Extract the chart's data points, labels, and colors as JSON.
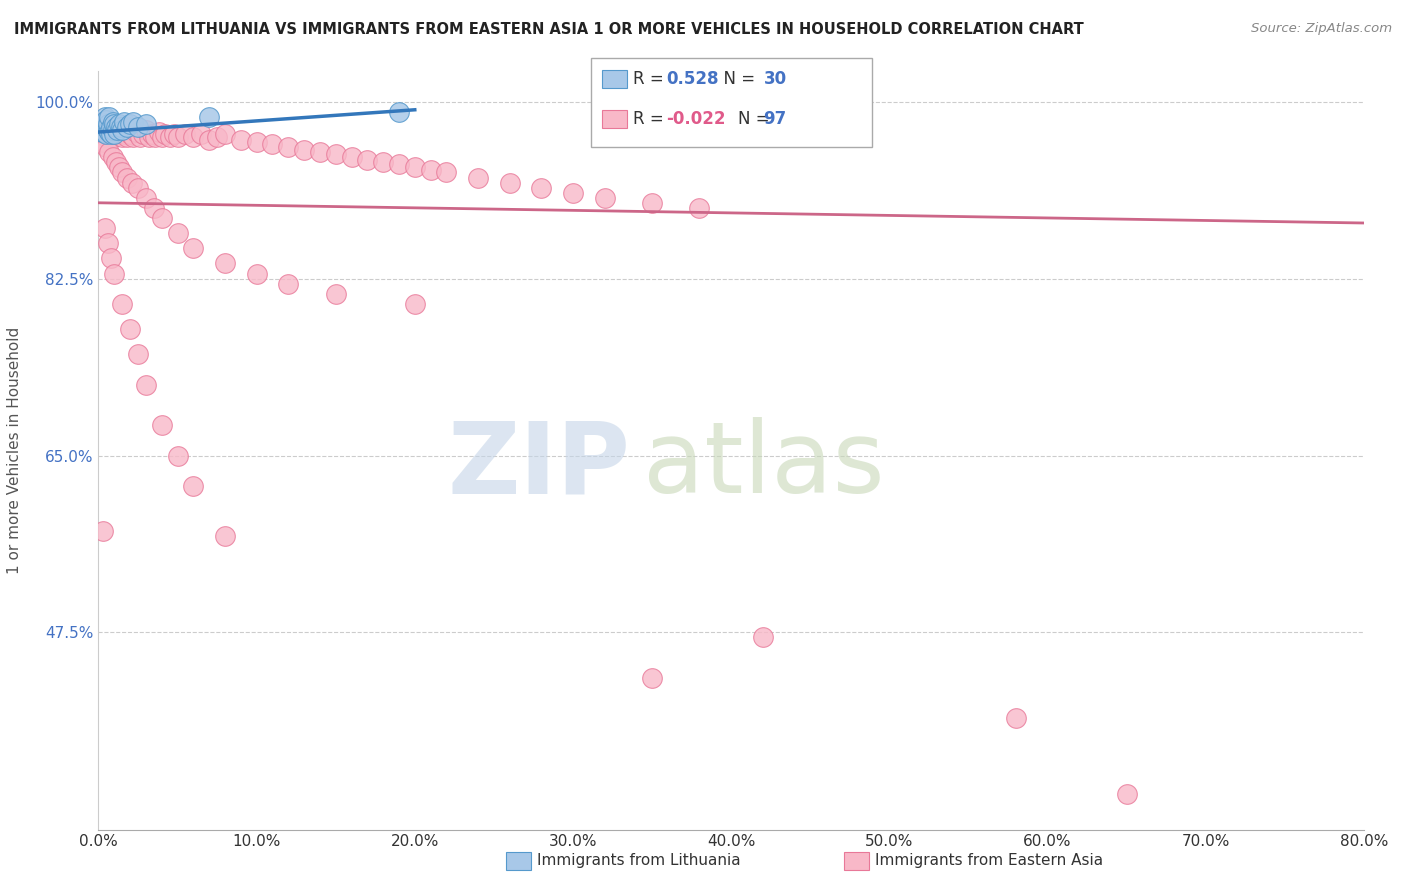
{
  "title": "IMMIGRANTS FROM LITHUANIA VS IMMIGRANTS FROM EASTERN ASIA 1 OR MORE VEHICLES IN HOUSEHOLD CORRELATION CHART",
  "source": "Source: ZipAtlas.com",
  "ylabel": "1 or more Vehicles in Household",
  "xlim": [
    0.0,
    0.8
  ],
  "ylim": [
    0.28,
    1.03
  ],
  "xticks": [
    0.0,
    0.1,
    0.2,
    0.3,
    0.4,
    0.5,
    0.6,
    0.7,
    0.8
  ],
  "xticklabels": [
    "0.0%",
    "10.0%",
    "20.0%",
    "30.0%",
    "40.0%",
    "50.0%",
    "60.0%",
    "70.0%",
    "80.0%"
  ],
  "yticks": [
    0.475,
    0.65,
    0.825,
    1.0
  ],
  "yticklabels": [
    "47.5%",
    "65.0%",
    "82.5%",
    "100.0%"
  ],
  "legend_r1_val": "0.528",
  "legend_n1_val": "30",
  "legend_r2_val": "-0.022",
  "legend_n2_val": "97",
  "lithuania_color": "#a8c8e8",
  "lithuania_edge": "#5599cc",
  "eastern_asia_color": "#f8b8c8",
  "eastern_asia_edge": "#e87898",
  "trend_lithuania_color": "#3377bb",
  "trend_eastern_asia_color": "#cc6688",
  "watermark_zip": "ZIP",
  "watermark_atlas": "atlas",
  "watermark_color_zip": "#c5d5e8",
  "watermark_color_atlas": "#c8d8b8",
  "background_color": "#ffffff",
  "legend_label1": "Immigrants from Lithuania",
  "legend_label2": "Immigrants from Eastern Asia",
  "lithuania_x": [
    0.002,
    0.003,
    0.004,
    0.004,
    0.005,
    0.005,
    0.005,
    0.006,
    0.006,
    0.007,
    0.007,
    0.008,
    0.008,
    0.009,
    0.009,
    0.01,
    0.01,
    0.011,
    0.012,
    0.013,
    0.014,
    0.015,
    0.016,
    0.018,
    0.02,
    0.022,
    0.025,
    0.03,
    0.07,
    0.19
  ],
  "lithuania_y": [
    0.97,
    0.98,
    0.975,
    0.985,
    0.968,
    0.975,
    0.982,
    0.972,
    0.978,
    0.97,
    0.985,
    0.968,
    0.975,
    0.98,
    0.972,
    0.968,
    0.978,
    0.975,
    0.972,
    0.978,
    0.975,
    0.972,
    0.98,
    0.975,
    0.978,
    0.98,
    0.975,
    0.978,
    0.985,
    0.99
  ],
  "eastern_asia_x": [
    0.002,
    0.003,
    0.004,
    0.005,
    0.006,
    0.007,
    0.008,
    0.009,
    0.01,
    0.011,
    0.012,
    0.013,
    0.014,
    0.015,
    0.016,
    0.017,
    0.018,
    0.019,
    0.02,
    0.022,
    0.024,
    0.026,
    0.028,
    0.03,
    0.032,
    0.034,
    0.036,
    0.038,
    0.04,
    0.042,
    0.045,
    0.048,
    0.05,
    0.055,
    0.06,
    0.065,
    0.07,
    0.075,
    0.08,
    0.09,
    0.1,
    0.11,
    0.12,
    0.13,
    0.14,
    0.15,
    0.16,
    0.17,
    0.18,
    0.19,
    0.2,
    0.21,
    0.22,
    0.24,
    0.26,
    0.28,
    0.3,
    0.32,
    0.35,
    0.38,
    0.003,
    0.005,
    0.007,
    0.009,
    0.011,
    0.013,
    0.015,
    0.018,
    0.021,
    0.025,
    0.03,
    0.035,
    0.04,
    0.05,
    0.06,
    0.08,
    0.1,
    0.12,
    0.15,
    0.2,
    0.004,
    0.006,
    0.008,
    0.01,
    0.015,
    0.02,
    0.025,
    0.03,
    0.04,
    0.05,
    0.06,
    0.08,
    0.003,
    0.42,
    0.35,
    0.58,
    0.65
  ],
  "eastern_asia_y": [
    0.98,
    0.975,
    0.97,
    0.965,
    0.972,
    0.968,
    0.975,
    0.97,
    0.965,
    0.972,
    0.968,
    0.975,
    0.97,
    0.965,
    0.972,
    0.968,
    0.965,
    0.972,
    0.968,
    0.965,
    0.97,
    0.965,
    0.968,
    0.972,
    0.965,
    0.968,
    0.965,
    0.97,
    0.965,
    0.968,
    0.965,
    0.968,
    0.965,
    0.968,
    0.965,
    0.968,
    0.962,
    0.965,
    0.968,
    0.962,
    0.96,
    0.958,
    0.955,
    0.952,
    0.95,
    0.948,
    0.945,
    0.942,
    0.94,
    0.938,
    0.935,
    0.932,
    0.93,
    0.925,
    0.92,
    0.915,
    0.91,
    0.905,
    0.9,
    0.895,
    0.96,
    0.955,
    0.95,
    0.945,
    0.94,
    0.935,
    0.93,
    0.925,
    0.92,
    0.915,
    0.905,
    0.895,
    0.885,
    0.87,
    0.855,
    0.84,
    0.83,
    0.82,
    0.81,
    0.8,
    0.875,
    0.86,
    0.845,
    0.83,
    0.8,
    0.775,
    0.75,
    0.72,
    0.68,
    0.65,
    0.62,
    0.57,
    0.575,
    0.47,
    0.43,
    0.39,
    0.315
  ],
  "trend_ea_x0": 0.0,
  "trend_ea_y0": 0.9,
  "trend_ea_x1": 0.8,
  "trend_ea_y1": 0.88,
  "trend_lith_x0": 0.0,
  "trend_lith_y0": 0.97,
  "trend_lith_x1": 0.2,
  "trend_lith_y1": 0.992
}
